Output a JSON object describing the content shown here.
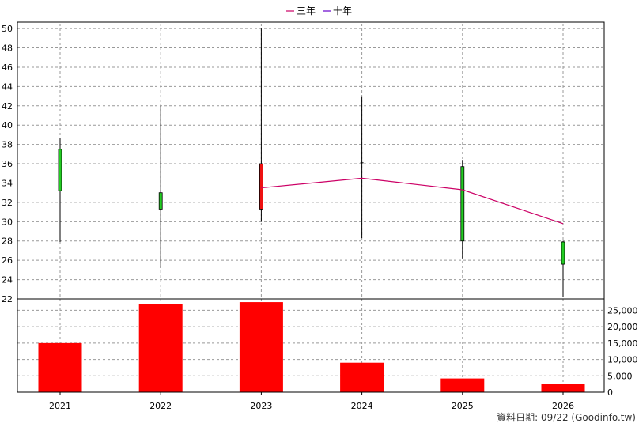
{
  "chart_data": {
    "type": "candlestick_with_volume",
    "legend": [
      {
        "name": "三年",
        "color": "#cc0066"
      },
      {
        "name": "十年",
        "color": "#6600cc"
      }
    ],
    "categories": [
      "2021",
      "2022",
      "2023",
      "2024",
      "2025",
      "2026"
    ],
    "price_axis": {
      "min": 22,
      "max": 50,
      "step": 2
    },
    "volume_axis": {
      "min": 0,
      "max": 25000,
      "step": 5000
    },
    "candles": [
      {
        "year": "2021",
        "open": 33.2,
        "close": 37.5,
        "high": 38.7,
        "low": 27.9,
        "color": "#22cc22"
      },
      {
        "year": "2022",
        "open": 31.3,
        "close": 33.0,
        "high": 42.0,
        "low": 25.2,
        "color": "#22cc22"
      },
      {
        "year": "2023",
        "open": 36.0,
        "close": 31.3,
        "high": 50.0,
        "low": 30.0,
        "color": "#ee1111"
      },
      {
        "year": "2024",
        "open": 36.1,
        "close": 36.1,
        "high": 42.9,
        "low": 28.3,
        "color": "#000000"
      },
      {
        "year": "2025",
        "open": 28.0,
        "close": 35.7,
        "high": 36.4,
        "low": 26.2,
        "color": "#22cc22"
      },
      {
        "year": "2026",
        "open": 25.6,
        "close": 27.9,
        "high": 28.0,
        "low": 22.2,
        "color": "#22cc22"
      }
    ],
    "three_year_line": [
      {
        "year": "2023",
        "value": 33.5
      },
      {
        "year": "2024",
        "value": 34.5
      },
      {
        "year": "2025",
        "value": 33.3
      },
      {
        "year": "2026",
        "value": 29.8
      }
    ],
    "volumes": [
      15000,
      27000,
      27500,
      9000,
      4200,
      2500
    ],
    "volume_color": "#ff0000"
  },
  "footer": {
    "text": "資料日期: 09/22 (Goodinfo.tw)"
  }
}
